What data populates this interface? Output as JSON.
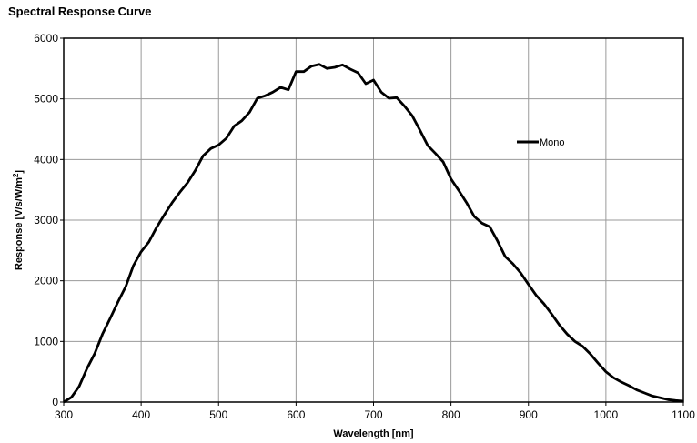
{
  "chart_data": {
    "type": "line",
    "title": "Spectral Response Curve",
    "xlabel": "Wavelength [nm]",
    "ylabel_main": "Response [V/s/W/m",
    "ylabel_sup": "2",
    "ylabel_end": "]",
    "xlim": [
      300,
      1100
    ],
    "ylim": [
      0,
      6000
    ],
    "xticks": [
      300,
      400,
      500,
      600,
      700,
      800,
      900,
      1000,
      1100
    ],
    "yticks": [
      0,
      1000,
      2000,
      3000,
      4000,
      5000,
      6000
    ],
    "grid": true,
    "legend_position": "right",
    "series": [
      {
        "name": "Mono",
        "color": "#000000",
        "x": [
          300,
          310,
          320,
          330,
          340,
          350,
          360,
          370,
          380,
          390,
          400,
          410,
          420,
          430,
          440,
          450,
          460,
          470,
          480,
          490,
          500,
          510,
          520,
          530,
          540,
          550,
          560,
          570,
          580,
          590,
          600,
          610,
          620,
          630,
          640,
          650,
          660,
          670,
          680,
          690,
          700,
          710,
          720,
          730,
          740,
          750,
          760,
          770,
          780,
          790,
          800,
          810,
          820,
          830,
          840,
          850,
          860,
          870,
          880,
          890,
          900,
          910,
          920,
          930,
          940,
          950,
          960,
          970,
          980,
          990,
          1000,
          1010,
          1020,
          1030,
          1040,
          1050,
          1060,
          1070,
          1080,
          1090,
          1100
        ],
        "y": [
          0,
          80,
          260,
          550,
          800,
          1120,
          1380,
          1650,
          1900,
          2250,
          2480,
          2640,
          2880,
          3090,
          3290,
          3460,
          3620,
          3820,
          4060,
          4180,
          4240,
          4350,
          4550,
          4640,
          4780,
          5010,
          5050,
          5110,
          5190,
          5150,
          5450,
          5450,
          5540,
          5570,
          5500,
          5520,
          5560,
          5490,
          5430,
          5250,
          5310,
          5110,
          5010,
          5020,
          4880,
          4720,
          4480,
          4230,
          4100,
          3960,
          3680,
          3490,
          3290,
          3060,
          2950,
          2890,
          2660,
          2400,
          2280,
          2130,
          1940,
          1760,
          1620,
          1450,
          1270,
          1120,
          1000,
          920,
          790,
          640,
          500,
          400,
          330,
          270,
          200,
          150,
          100,
          70,
          40,
          25,
          15
        ]
      }
    ]
  }
}
